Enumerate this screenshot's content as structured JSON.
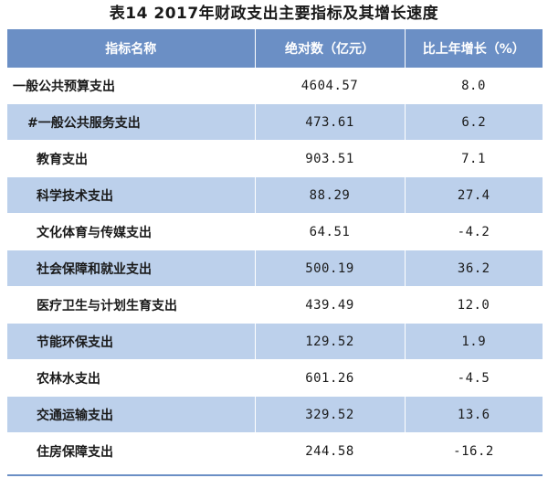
{
  "table": {
    "title": "表14    2017年财政支出主要指标及其增长速度",
    "headers": [
      "指标名称",
      "绝对数（亿元）",
      "比上年增长（%）"
    ],
    "rows": [
      {
        "name": "一般公共预算支出",
        "value": "4604.57",
        "growth": "8.0"
      },
      {
        "name": "#一般公共服务支出",
        "value": "473.61",
        "growth": "6.2"
      },
      {
        "name": "教育支出",
        "value": "903.51",
        "growth": "7.1"
      },
      {
        "name": "科学技术支出",
        "value": "88.29",
        "growth": "27.4"
      },
      {
        "name": "文化体育与传媒支出",
        "value": "64.51",
        "growth": "-4.2"
      },
      {
        "name": "社会保障和就业支出",
        "value": "500.19",
        "growth": "36.2"
      },
      {
        "name": "医疗卫生与计划生育支出",
        "value": "439.49",
        "growth": "12.0"
      },
      {
        "name": "节能环保支出",
        "value": "129.52",
        "growth": "1.9"
      },
      {
        "name": "农林水支出",
        "value": "601.26",
        "growth": "-4.5"
      },
      {
        "name": "交通运输支出",
        "value": "329.52",
        "growth": "13.6"
      },
      {
        "name": "住房保障支出",
        "value": "244.58",
        "growth": "-16.2"
      }
    ]
  },
  "colors": {
    "header_bg": "#6b8fc5",
    "stripe_bg": "#bcd0eb"
  }
}
